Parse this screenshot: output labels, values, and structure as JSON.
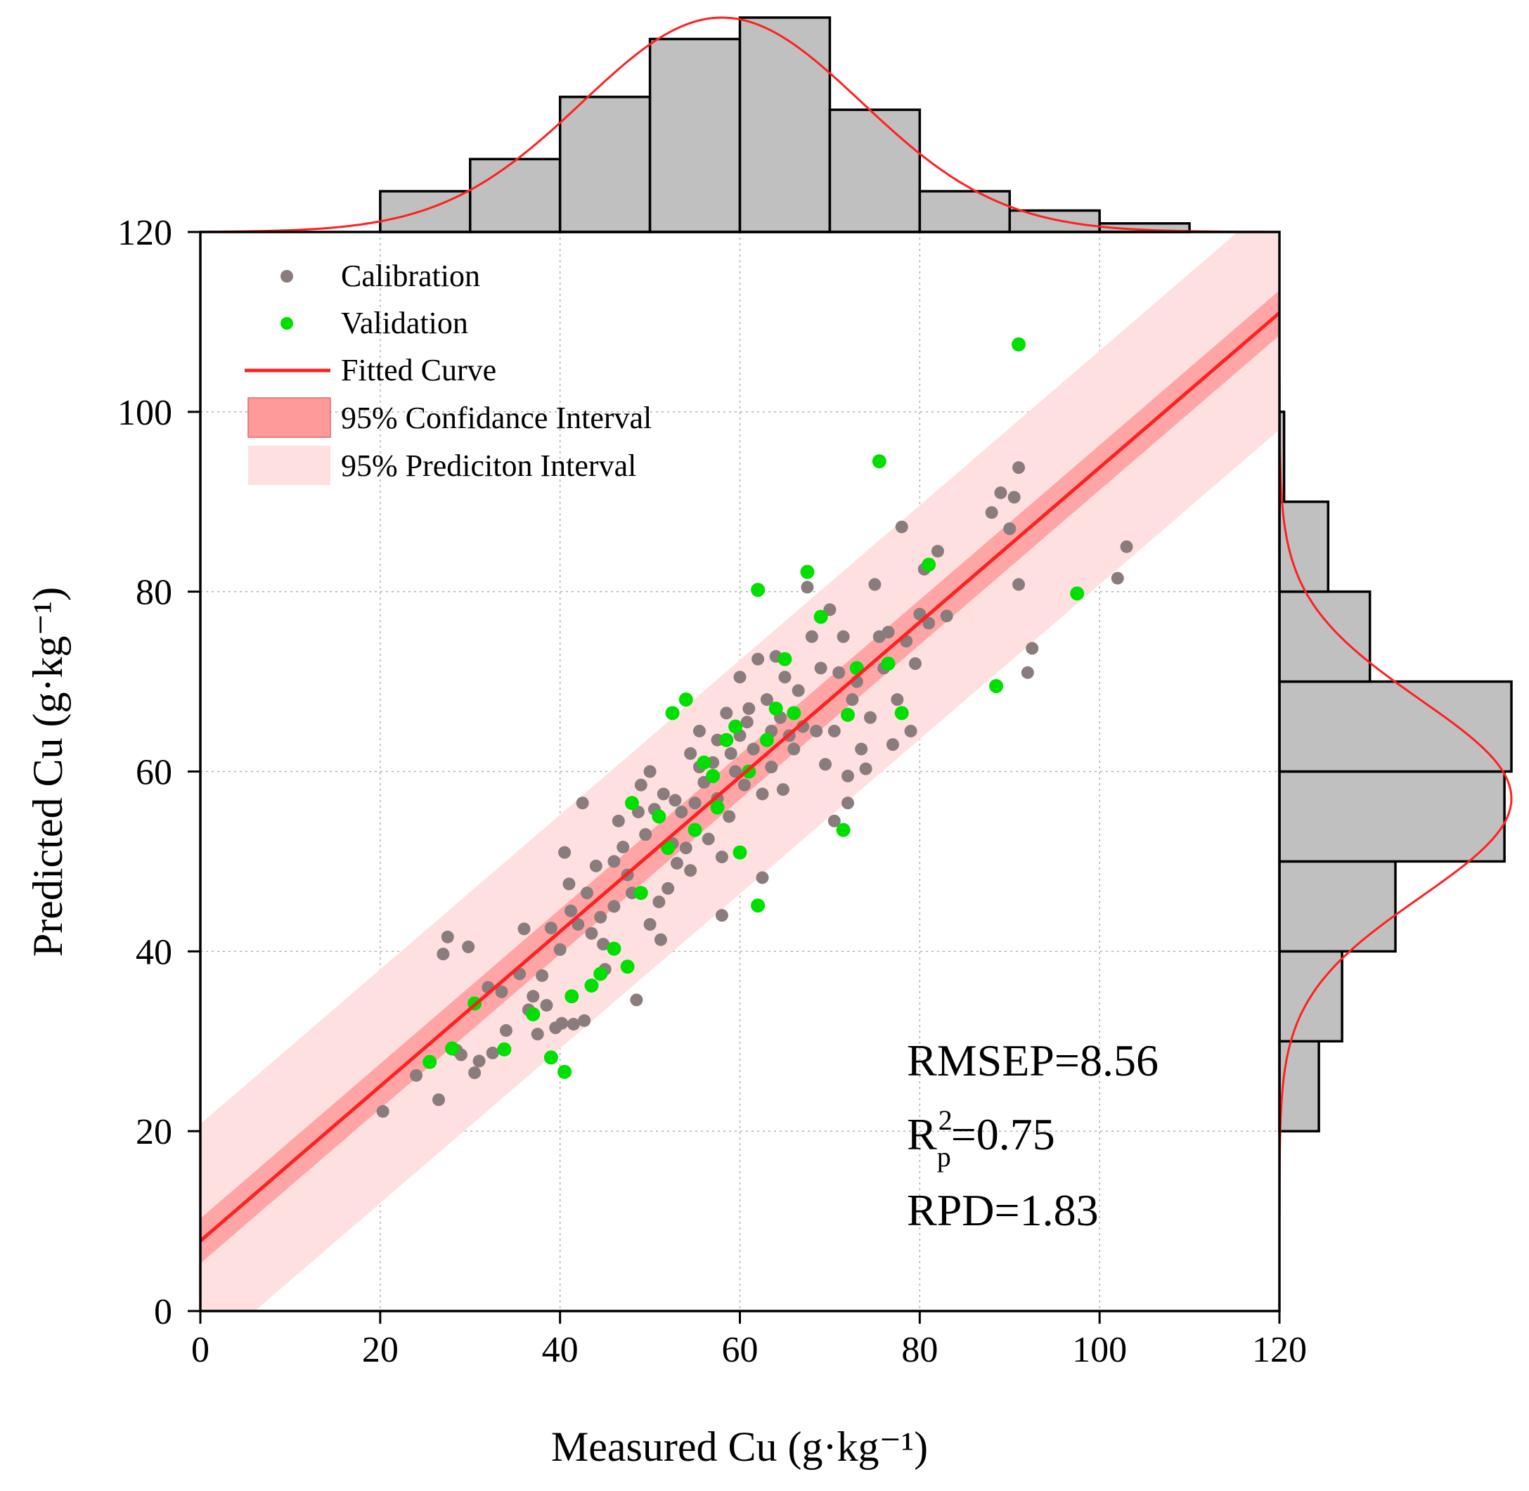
{
  "chart_data": {
    "type": "scatter",
    "xlabel": "Measured Cu (g·kg⁻¹)",
    "ylabel": "Predicted Cu (g·kg⁻¹)",
    "xlim": [
      0,
      120
    ],
    "ylim": [
      0,
      120
    ],
    "x_ticks": [
      "0",
      "20",
      "40",
      "60",
      "80",
      "100",
      "120"
    ],
    "y_ticks": [
      "0",
      "20",
      "40",
      "60",
      "80",
      "100",
      "120"
    ],
    "grid": true,
    "legend_position": "top-left",
    "legend": {
      "calibration": "Calibration",
      "validation": "Validation",
      "fitted": "Fitted Curve",
      "confidence": "95% Confidance Interval",
      "prediction": "95% Prediciton Interval"
    },
    "colors": {
      "calibration": "#8a7c7c",
      "validation": "#00e000",
      "fit": "#ff2020",
      "confidence_band": "#ff9a9a",
      "prediction_band": "#ffe0e0",
      "histogram_fill": "#c0c0c0"
    },
    "fit": {
      "intercept": 7.8,
      "slope": 0.86
    },
    "bands": {
      "confidence_halfwidth": 2.5,
      "prediction_halfwidth": 13.0
    },
    "stats": {
      "rmsep": "RMSEP=8.56",
      "r2_prefix": "R",
      "r2_sup": "2",
      "r2_sub": "p",
      "r2_value": "=0.75",
      "rpd": "RPD=1.83"
    },
    "calibration": [
      [
        20.3,
        22.2
      ],
      [
        24,
        26.2
      ],
      [
        26.5,
        23.5
      ],
      [
        27,
        39.7
      ],
      [
        27.5,
        41.6
      ],
      [
        28.5,
        29
      ],
      [
        29,
        28.5
      ],
      [
        29.8,
        40.5
      ],
      [
        30.5,
        26.5
      ],
      [
        31,
        27.8
      ],
      [
        32,
        36
      ],
      [
        32.5,
        28.7
      ],
      [
        33.5,
        35.5
      ],
      [
        34,
        31.2
      ],
      [
        35.5,
        37.5
      ],
      [
        36,
        42.5
      ],
      [
        36.5,
        33.5
      ],
      [
        37,
        35
      ],
      [
        37.5,
        30.8
      ],
      [
        38,
        37.3
      ],
      [
        38.5,
        34
      ],
      [
        39,
        42.6
      ],
      [
        39.5,
        31.5
      ],
      [
        40,
        40.2
      ],
      [
        40.2,
        32
      ],
      [
        40.5,
        51
      ],
      [
        41,
        47.5
      ],
      [
        41.2,
        44.5
      ],
      [
        41.5,
        31.9
      ],
      [
        42,
        43
      ],
      [
        42.5,
        56.5
      ],
      [
        42.7,
        32.3
      ],
      [
        43,
        46.5
      ],
      [
        43.5,
        42
      ],
      [
        44,
        49.5
      ],
      [
        44.5,
        43.8
      ],
      [
        44.8,
        40.8
      ],
      [
        45,
        38
      ],
      [
        46,
        45
      ],
      [
        46,
        50
      ],
      [
        46.5,
        54.5
      ],
      [
        47,
        51.6
      ],
      [
        47.5,
        48.5
      ],
      [
        48,
        46.5
      ],
      [
        48.5,
        34.6
      ],
      [
        48.7,
        55.5
      ],
      [
        49,
        58.5
      ],
      [
        49.5,
        53
      ],
      [
        50,
        60
      ],
      [
        50,
        43
      ],
      [
        50.5,
        55.8
      ],
      [
        51,
        45.5
      ],
      [
        51.2,
        41.3
      ],
      [
        51.5,
        57.5
      ],
      [
        52,
        47
      ],
      [
        52.5,
        52
      ],
      [
        52.8,
        56.8
      ],
      [
        53,
        49.8
      ],
      [
        53.5,
        55.5
      ],
      [
        54,
        51.5
      ],
      [
        54.5,
        62
      ],
      [
        54.5,
        49
      ],
      [
        55,
        56.5
      ],
      [
        55.5,
        64.5
      ],
      [
        55.5,
        60.5
      ],
      [
        56,
        58.8
      ],
      [
        56.5,
        52.5
      ],
      [
        57,
        61
      ],
      [
        57.5,
        63.5
      ],
      [
        57.5,
        57
      ],
      [
        58,
        50.5
      ],
      [
        58,
        44
      ],
      [
        58.5,
        66.5
      ],
      [
        58.8,
        55
      ],
      [
        59,
        62
      ],
      [
        59.5,
        60
      ],
      [
        60,
        64
      ],
      [
        60,
        70.5
      ],
      [
        60.5,
        58.5
      ],
      [
        60.8,
        65.5
      ],
      [
        61,
        67
      ],
      [
        61.5,
        62.5
      ],
      [
        62,
        72.5
      ],
      [
        62.5,
        57.5
      ],
      [
        62.5,
        48.2
      ],
      [
        63,
        68
      ],
      [
        63.5,
        64.5
      ],
      [
        63.5,
        60.5
      ],
      [
        64,
        72.8
      ],
      [
        64.5,
        66
      ],
      [
        64.8,
        58
      ],
      [
        65,
        70.5
      ],
      [
        65.5,
        64
      ],
      [
        66,
        62.5
      ],
      [
        66.5,
        69
      ],
      [
        67,
        65
      ],
      [
        67.5,
        80.5
      ],
      [
        68,
        75
      ],
      [
        68.5,
        64.5
      ],
      [
        69,
        71.5
      ],
      [
        69.5,
        60.8
      ],
      [
        70,
        78
      ],
      [
        70.5,
        64.5
      ],
      [
        70.5,
        54.5
      ],
      [
        71,
        71
      ],
      [
        71.5,
        75
      ],
      [
        72,
        59.5
      ],
      [
        72,
        56.5
      ],
      [
        72.5,
        68
      ],
      [
        73,
        70
      ],
      [
        73.5,
        62.5
      ],
      [
        74,
        60.3
      ],
      [
        74.5,
        66
      ],
      [
        75,
        80.8
      ],
      [
        75.5,
        75
      ],
      [
        76,
        71.5
      ],
      [
        76.5,
        75.5
      ],
      [
        77,
        63
      ],
      [
        77.5,
        68
      ],
      [
        78,
        87.2
      ],
      [
        78.5,
        74.5
      ],
      [
        79,
        64.5
      ],
      [
        79.5,
        72
      ],
      [
        80,
        77.5
      ],
      [
        80.5,
        82.5
      ],
      [
        81,
        76.5
      ],
      [
        82,
        84.5
      ],
      [
        83,
        77.3
      ],
      [
        88,
        88.8
      ],
      [
        89,
        91
      ],
      [
        90,
        87
      ],
      [
        90.5,
        90.5
      ],
      [
        91,
        93.8
      ],
      [
        91,
        80.8
      ],
      [
        92,
        71
      ],
      [
        92.5,
        73.7
      ],
      [
        102,
        81.5
      ],
      [
        103,
        85
      ]
    ],
    "validation": [
      [
        25.5,
        27.7
      ],
      [
        28,
        29.2
      ],
      [
        30.5,
        34.2
      ],
      [
        33.8,
        29.1
      ],
      [
        37,
        33
      ],
      [
        39,
        28.2
      ],
      [
        40.5,
        26.6
      ],
      [
        41.3,
        35
      ],
      [
        43.5,
        36.2
      ],
      [
        44.5,
        37.5
      ],
      [
        46,
        40.3
      ],
      [
        47.5,
        38.3
      ],
      [
        48,
        56.5
      ],
      [
        49,
        46.5
      ],
      [
        51,
        55
      ],
      [
        52,
        51.5
      ],
      [
        52.5,
        66.5
      ],
      [
        54,
        68
      ],
      [
        55,
        53.5
      ],
      [
        56,
        61
      ],
      [
        57,
        59.5
      ],
      [
        57.5,
        56
      ],
      [
        58.5,
        63.5
      ],
      [
        59.5,
        65
      ],
      [
        60,
        51
      ],
      [
        61,
        60
      ],
      [
        62,
        80.2
      ],
      [
        62,
        45.1
      ],
      [
        63,
        63.5
      ],
      [
        64,
        67
      ],
      [
        65,
        72.5
      ],
      [
        66,
        66.5
      ],
      [
        67.5,
        82.2
      ],
      [
        69,
        77.2
      ],
      [
        71.5,
        53.5
      ],
      [
        72,
        66.3
      ],
      [
        73,
        71.5
      ],
      [
        75.5,
        94.5
      ],
      [
        76.5,
        72
      ],
      [
        78,
        66.5
      ],
      [
        81,
        83
      ],
      [
        88.5,
        69.5
      ],
      [
        91,
        107.5
      ],
      [
        97.5,
        79.8
      ]
    ],
    "histogram_x": {
      "bin_edges": [
        20,
        30,
        40,
        50,
        60,
        70,
        80,
        90,
        100,
        110
      ],
      "heights": [
        0.19,
        0.34,
        0.63,
        0.9,
        1.0,
        0.57,
        0.19,
        0.1,
        0.04
      ],
      "fit_mean": 58,
      "fit_sd": 15.5
    },
    "histogram_y": {
      "bin_edges": [
        20,
        30,
        40,
        50,
        60,
        70,
        80,
        90,
        100
      ],
      "heights": [
        0.17,
        0.27,
        0.5,
        0.97,
        1.0,
        0.39,
        0.21,
        0.02
      ],
      "fit_mean": 57,
      "fit_sd": 11
    }
  }
}
